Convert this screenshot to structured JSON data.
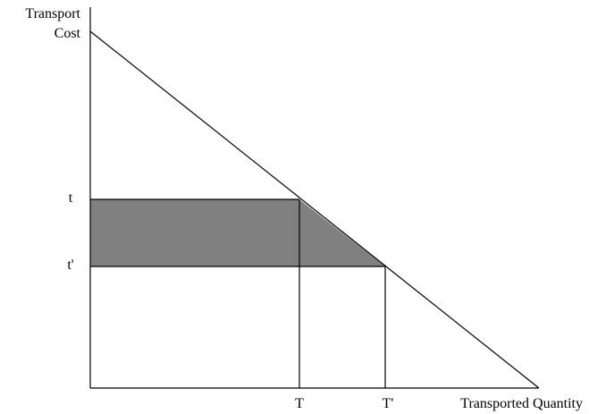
{
  "diagram": {
    "y_axis_label_line1": "Transport",
    "y_axis_label_line2": "Cost",
    "x_axis_label": "Transported Quantity",
    "y_tick_t": "t",
    "y_tick_t_prime": "t'",
    "x_tick_T": "T",
    "x_tick_T_prime": "T'",
    "colors": {
      "lines": "#000000",
      "shaded_area": "#808080",
      "background": "#ffffff"
    }
  }
}
